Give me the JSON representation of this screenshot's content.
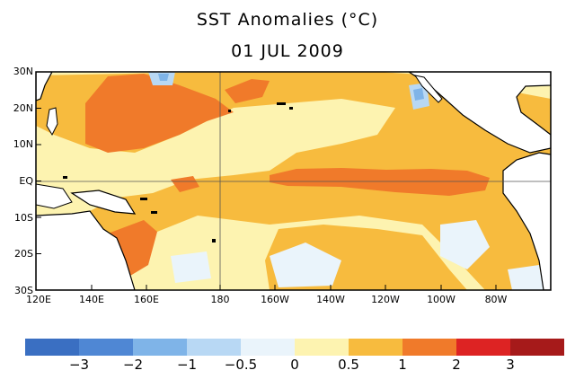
{
  "title": "SST Anomalies (°C)",
  "date": "01 JUL 2009",
  "lat_labels": [
    "30N",
    "20N",
    "10N",
    "EQ",
    "10S",
    "20S",
    "30S"
  ],
  "lon_labels": [
    "120E",
    "140E",
    "160E",
    "180",
    "160W",
    "140W",
    "120W",
    "100W",
    "80W"
  ],
  "colorbar": {
    "colors": [
      "#3a6fc2",
      "#4f87d4",
      "#7fb4e8",
      "#b8d8f4",
      "#eaf4fb",
      "#fdf3b0",
      "#f7bb3e",
      "#f07a2a",
      "#dd2323",
      "#a61a1a"
    ],
    "labels": [
      "−3",
      "−2",
      "−1",
      "−0.5",
      "0",
      "0.5",
      "1",
      "2",
      "3"
    ]
  },
  "palette": {
    "land": "#ffffff",
    "coast": "#000000",
    "warm1": "#fdf3b0",
    "warm2": "#f7bb3e",
    "warm3": "#f07a2a",
    "cool1": "#eaf4fb",
    "cool2": "#b8d8f4",
    "cool3": "#7fb4e8"
  }
}
